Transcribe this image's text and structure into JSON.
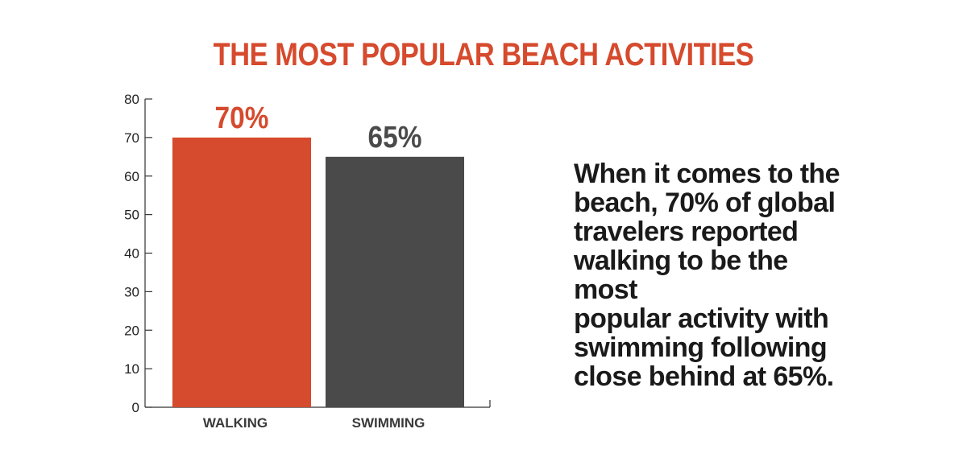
{
  "chart_data": {
    "type": "bar",
    "title": "THE MOST POPULAR BEACH ACTIVITIES",
    "categories": [
      "WALKING",
      "SWIMMING"
    ],
    "values": [
      70,
      65
    ],
    "data_labels": [
      "70%",
      "65%"
    ],
    "colors": [
      "#d64a2d",
      "#4a4a4a"
    ],
    "label_colors": [
      "#d64a2d",
      "#4a4a4a"
    ],
    "ylim": [
      0,
      80
    ],
    "yticks": [
      0,
      10,
      20,
      30,
      40,
      50,
      60,
      70,
      80
    ],
    "xlabel": "",
    "ylabel": "",
    "grid": false,
    "legend": "none"
  },
  "description": "When it comes to the\nbeach, 70% of global\ntravelers reported\nwalking to be the most\npopular activity with\nswimming following\nclose behind at 65%."
}
